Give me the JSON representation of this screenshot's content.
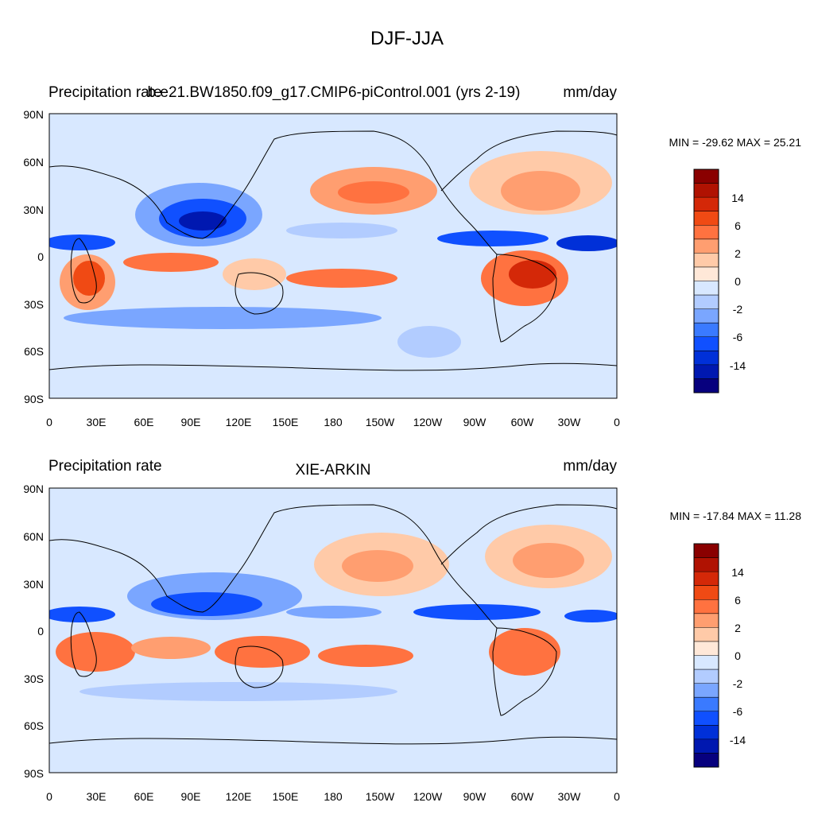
{
  "figure": {
    "title": "DJF-JJA"
  },
  "axes": {
    "lat_ticks": [
      "90N",
      "60N",
      "30N",
      "0",
      "30S",
      "60S",
      "90S"
    ],
    "lon_ticks": [
      "0",
      "30E",
      "60E",
      "90E",
      "120E",
      "150E",
      "180",
      "150W",
      "120W",
      "90W",
      "60W",
      "30W",
      "0"
    ]
  },
  "colors": {
    "levels": [
      "#07007e",
      "#0018b0",
      "#0030d8",
      "#1050ff",
      "#3a7aff",
      "#7aa6ff",
      "#b2ccff",
      "#d8e8ff",
      "#ffe8d8",
      "#ffcaa8",
      "#ff9e70",
      "#ff7240",
      "#f04a14",
      "#d42808",
      "#b01202",
      "#8a0000"
    ],
    "continent_outline": "#000000"
  },
  "panels": [
    {
      "left_label": "Precipitation rate",
      "center_label": "b.e21.BW1850.f09_g17.CMIP6-piControl.001 (yrs 2-19)",
      "right_label": "mm/day",
      "stats": "MIN = -29.62 MAX =  25.21",
      "colorbar_labels": [
        "14",
        "6",
        "2",
        "0",
        "-2",
        "-6",
        "-14"
      ]
    },
    {
      "left_label": "Precipitation rate",
      "center_label": "XIE-ARKIN",
      "right_label": "mm/day",
      "stats": "MIN = -17.84 MAX =  11.28",
      "colorbar_labels": [
        "14",
        "6",
        "2",
        "0",
        "-2",
        "-6",
        "-14"
      ]
    }
  ]
}
